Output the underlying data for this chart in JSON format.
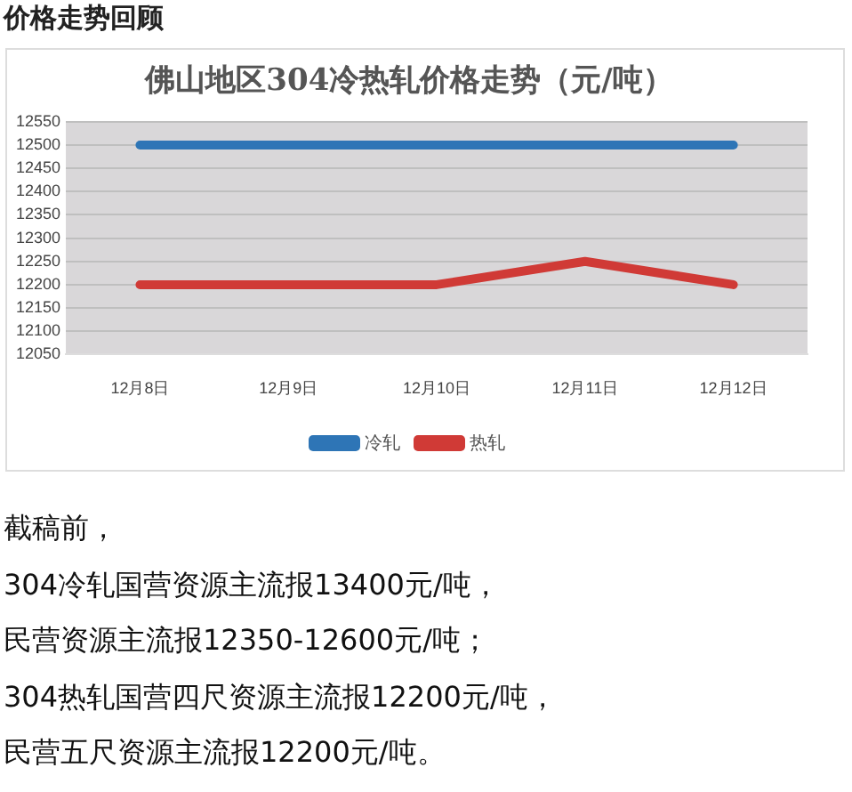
{
  "chart_data": {
    "type": "line",
    "subtitle": "价格走势回顾",
    "title": "佛山地区304冷热轧价格走势（元/吨）",
    "categories": [
      "12月8日",
      "12月9日",
      "12月10日",
      "12月11日",
      "12月12日"
    ],
    "series": [
      {
        "name": "冷轧",
        "color": "#2e75b6",
        "values": [
          12500,
          12500,
          12500,
          12500,
          12500
        ]
      },
      {
        "name": "热轧",
        "color": "#d03a36",
        "values": [
          12200,
          12200,
          12200,
          12250,
          12200
        ]
      }
    ],
    "ylim": [
      12050,
      12550
    ],
    "yticks": [
      12050,
      12100,
      12150,
      12200,
      12250,
      12300,
      12350,
      12400,
      12450,
      12500,
      12550
    ],
    "grid": "y",
    "legend": "bottom",
    "marker": "none",
    "line_style": "solid",
    "annotations": [
      "截稿前，",
      "304冷轧国营资源主流报13400元/吨，",
      "民营资源主流报12350-12600元/吨；",
      "304热轧国营四尺资源主流报12200元/吨，",
      "民营五尺资源主流报12200元/吨。"
    ]
  }
}
